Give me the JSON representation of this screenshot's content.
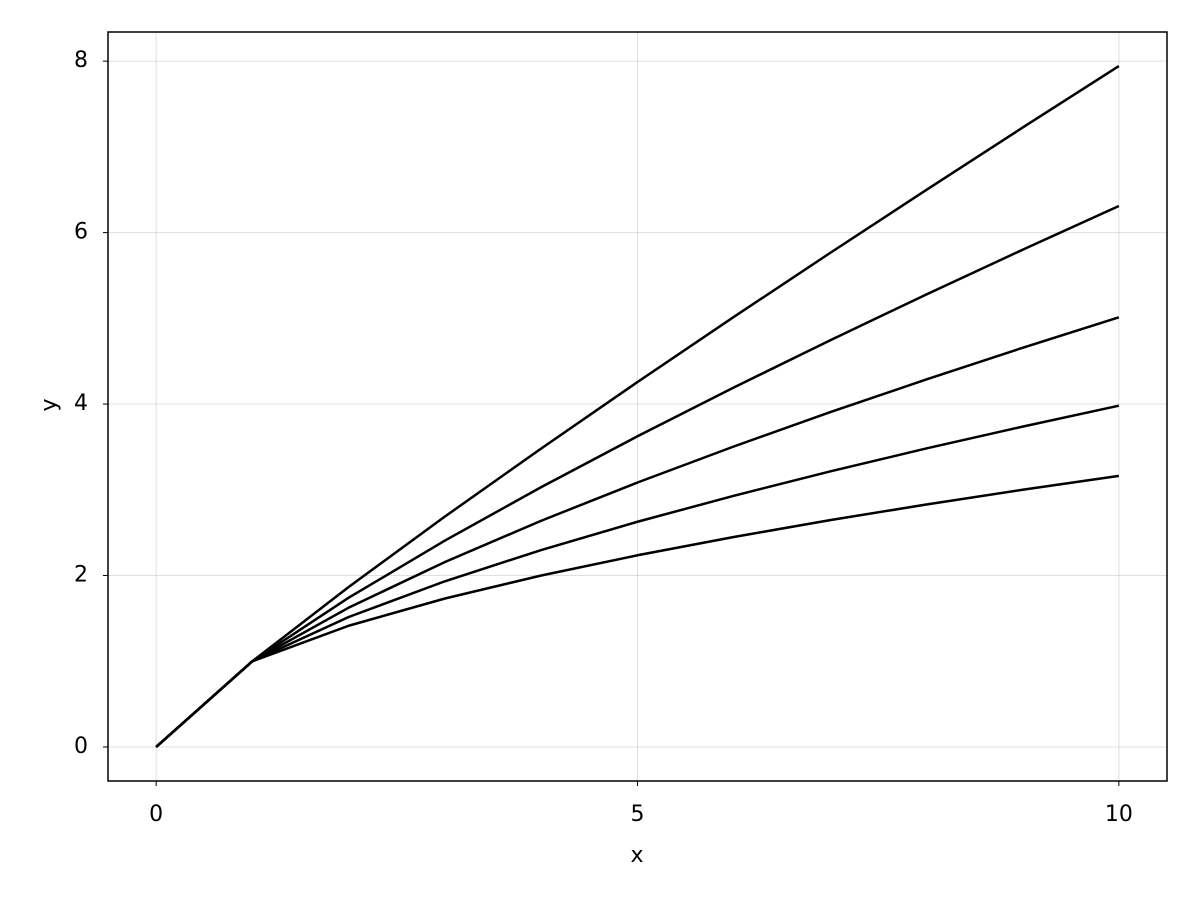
{
  "chart_data": {
    "type": "line",
    "x": [
      0,
      1,
      2,
      3,
      4,
      5,
      6,
      7,
      8,
      9,
      10
    ],
    "series": [
      {
        "color": "#000000",
        "values": [
          0,
          1,
          1.414,
          1.732,
          2,
          2.236,
          2.449,
          2.646,
          2.828,
          3,
          3.162
        ]
      },
      {
        "color": "#000000",
        "values": [
          0,
          1,
          1.516,
          1.933,
          2.297,
          2.627,
          2.93,
          3.214,
          3.482,
          3.737,
          3.981
        ]
      },
      {
        "color": "#000000",
        "values": [
          0,
          1,
          1.625,
          2.158,
          2.639,
          3.085,
          3.505,
          3.905,
          4.287,
          4.656,
          5.012
        ]
      },
      {
        "color": "#000000",
        "values": [
          0,
          1,
          1.741,
          2.408,
          3.031,
          3.624,
          4.193,
          4.743,
          5.278,
          5.8,
          6.31
        ]
      },
      {
        "color": "#000000",
        "values": [
          0,
          1,
          1.866,
          2.688,
          3.482,
          4.257,
          5.016,
          5.762,
          6.498,
          7.225,
          7.943
        ]
      }
    ],
    "xlabel": "x",
    "ylabel": "y",
    "xlim": [
      -0.5,
      10.5
    ],
    "ylim": [
      -0.397,
      8.34
    ],
    "xticks": [
      0,
      5,
      10
    ],
    "yticks": [
      0,
      2,
      4,
      6,
      8
    ],
    "grid": true
  }
}
